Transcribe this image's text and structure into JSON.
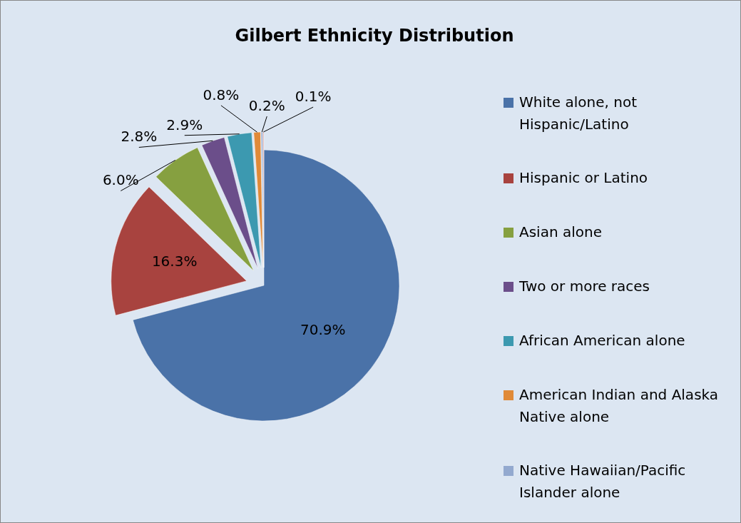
{
  "chart_data": {
    "type": "pie",
    "title": "Gilbert Ethnicity Distribution",
    "categories": [
      " White alone, not Hispanic/Latino",
      "Hispanic or Latino",
      "Asian alone",
      "Two or more races",
      "African American alone",
      "American Indian and Alaska Native alone",
      "Native Hawaiian/Pacific Islander alone",
      null
    ],
    "values": [
      70.9,
      16.3,
      6.0,
      2.8,
      2.9,
      0.8,
      0.2,
      0.1
    ],
    "value_labels": [
      "70.9%",
      "16.3%",
      "6.0%",
      "2.8%",
      "2.9%",
      "0.8%",
      "0.2%",
      "0.1%"
    ],
    "colors": [
      "#4a72a8",
      "#a8433f",
      "#86a040",
      "#6b4e8a",
      "#3c99b0",
      "#e08a38",
      "#93a9cf",
      "#d09290"
    ],
    "legend": "right"
  }
}
